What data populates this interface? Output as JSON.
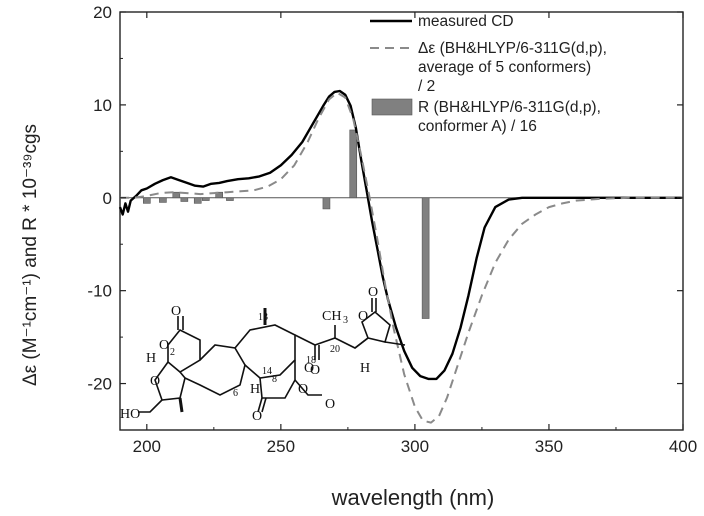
{
  "chart_data": {
    "type": "line",
    "xlabel": "wavelength (nm)",
    "ylabel": "Δε (M⁻¹cm⁻¹) and R * 10⁻³⁹cgs",
    "xlim": [
      190,
      400
    ],
    "ylim": [
      -25,
      20
    ],
    "x_ticks": [
      "200",
      "250",
      "300",
      "350",
      "400"
    ],
    "y_ticks": [
      "20",
      "10",
      "0",
      "-10",
      "-20"
    ],
    "x_tick_values": [
      200,
      250,
      300,
      350,
      400
    ],
    "y_tick_values": [
      20,
      10,
      0,
      -10,
      -20
    ],
    "grid": false,
    "legend_position": "top-right",
    "legend": [
      {
        "lines": [
          "measured CD"
        ],
        "style": "solid",
        "color": "#000000"
      },
      {
        "lines": [
          "Δε (BH&HLYP/6-311G(d,p),",
          "average of 5 conformers)",
          "/ 2"
        ],
        "style": "dashed",
        "color": "#8a8a8a"
      },
      {
        "lines": [
          "R (BH&HLYP/6-311G(d,p),",
          "conformer A) / 16"
        ],
        "style": "bar",
        "color": "#808080"
      }
    ],
    "series": [
      {
        "name": "measured CD",
        "style": "solid",
        "color": "#000000",
        "x": [
          190,
          191,
          192,
          193,
          194,
          196,
          198,
          200,
          203,
          206,
          209,
          212,
          215,
          218,
          221,
          224,
          227,
          230,
          234,
          238,
          242,
          246,
          250,
          254,
          258,
          262,
          264,
          266,
          268,
          270,
          272,
          274,
          276,
          278,
          280,
          282,
          284,
          286,
          288,
          290,
          293,
          296,
          299,
          302,
          305,
          308,
          311,
          314,
          317,
          320,
          323,
          326,
          330,
          335,
          340,
          350,
          360,
          380,
          400
        ],
        "y": [
          -1.0,
          -1.8,
          -0.6,
          -1.5,
          -0.3,
          0.2,
          0.8,
          1.0,
          1.5,
          1.9,
          2.2,
          1.9,
          1.6,
          1.3,
          1.2,
          1.5,
          1.6,
          1.8,
          2.0,
          2.1,
          2.3,
          2.7,
          3.5,
          4.6,
          6.0,
          8.0,
          9.0,
          10.0,
          10.9,
          11.4,
          11.5,
          11.1,
          9.9,
          7.5,
          4.0,
          0.8,
          -2.5,
          -5.5,
          -8.5,
          -11.0,
          -14.0,
          -16.5,
          -18.3,
          -19.2,
          -19.5,
          -19.5,
          -18.6,
          -16.8,
          -14.0,
          -10.5,
          -6.5,
          -3.2,
          -1.0,
          -0.2,
          0.0,
          0.0,
          0.0,
          0.0,
          0.0
        ]
      },
      {
        "name": "Δε (BH&HLYP/6-311G(d,p), average of 5 conformers) / 2",
        "style": "dashed",
        "color": "#8a8a8a",
        "x": [
          190,
          195,
          200,
          205,
          210,
          215,
          220,
          225,
          230,
          235,
          240,
          245,
          250,
          255,
          260,
          264,
          268,
          271,
          274,
          277,
          280,
          283,
          286,
          289,
          292,
          296,
          300,
          303,
          306,
          309,
          312,
          316,
          320,
          325,
          330,
          335,
          340,
          345,
          350,
          355,
          360,
          370,
          380,
          400
        ],
        "y": [
          0.0,
          0.0,
          0.2,
          0.5,
          0.6,
          0.5,
          0.4,
          0.5,
          0.6,
          0.7,
          0.8,
          1.2,
          2.0,
          3.5,
          6.0,
          8.5,
          10.6,
          11.3,
          10.8,
          8.5,
          4.5,
          0.2,
          -4.5,
          -9.5,
          -14.0,
          -19.0,
          -22.5,
          -24.0,
          -24.2,
          -23.5,
          -21.5,
          -18.0,
          -14.5,
          -10.5,
          -7.0,
          -4.5,
          -2.8,
          -1.8,
          -1.0,
          -0.6,
          -0.3,
          -0.1,
          0.0,
          0.0
        ]
      }
    ],
    "bars": {
      "name": "R (BH&HLYP/6-311G(d,p), conformer A) / 16",
      "color": "#808080",
      "x": [
        200,
        206,
        211,
        214,
        219,
        222,
        227,
        231,
        267,
        277,
        304
      ],
      "y": [
        -0.6,
        -0.5,
        0.6,
        -0.4,
        -0.6,
        -0.3,
        0.6,
        -0.3,
        -1.2,
        7.3,
        -13.0
      ]
    },
    "annotations": [
      "CH3",
      "2",
      "13",
      "20",
      "8",
      "14",
      "6",
      "18",
      "H",
      "HO",
      "O"
    ]
  }
}
